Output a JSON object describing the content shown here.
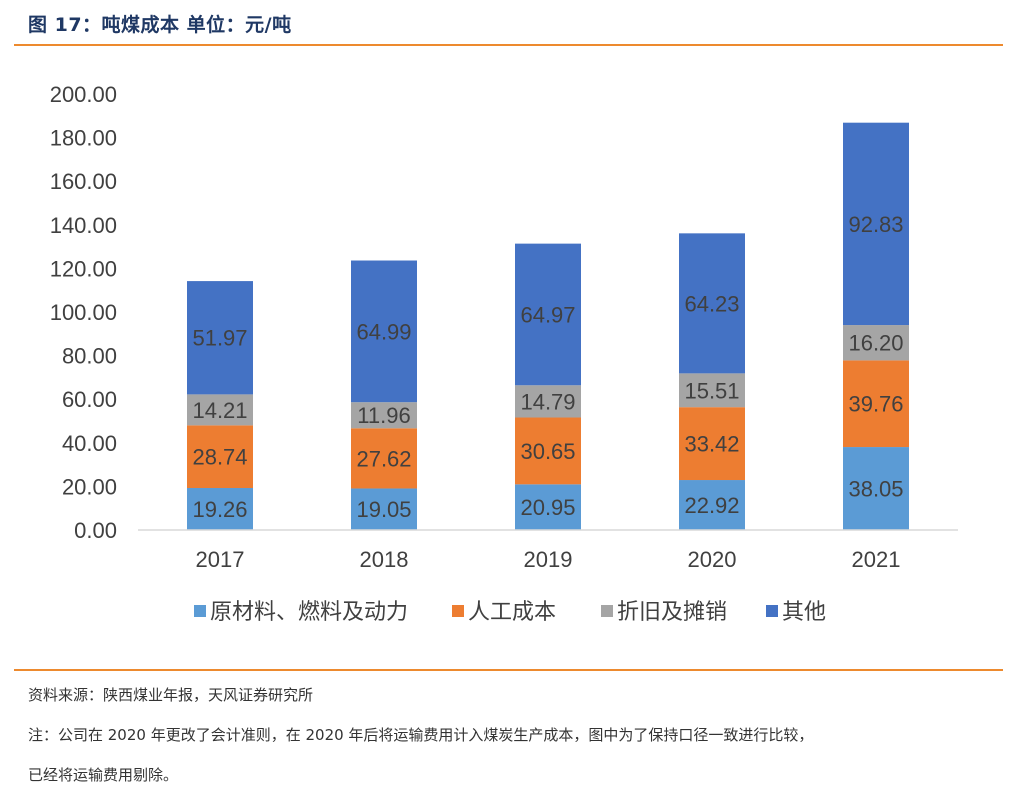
{
  "header": {
    "title": "图 17：吨煤成本 单位：元/吨"
  },
  "chart_data": {
    "type": "stacked-bar",
    "title": "吨煤成本 单位：元/吨",
    "categories": [
      "2017",
      "2018",
      "2019",
      "2020",
      "2021"
    ],
    "ylim": [
      0,
      200
    ],
    "yticks": [
      "0.00",
      "20.00",
      "40.00",
      "60.00",
      "80.00",
      "100.00",
      "120.00",
      "140.00",
      "160.00",
      "180.00",
      "200.00"
    ],
    "series": [
      {
        "name": "原材料、燃料及动力",
        "color": "#5B9BD5",
        "values": [
          19.26,
          19.05,
          20.95,
          22.92,
          38.05
        ],
        "labels": [
          "19.26",
          "19.05",
          "20.95",
          "22.92",
          "38.05"
        ]
      },
      {
        "name": "人工成本",
        "color": "#ED7D31",
        "values": [
          28.74,
          27.62,
          30.65,
          33.42,
          39.76
        ],
        "labels": [
          "28.74",
          "27.62",
          "30.65",
          "33.42",
          "39.76"
        ]
      },
      {
        "name": "折旧及摊销",
        "color": "#A5A5A5",
        "values": [
          14.21,
          11.96,
          14.79,
          15.51,
          16.2
        ],
        "labels": [
          "14.21",
          "11.96",
          "14.79",
          "15.51",
          "16.20"
        ]
      },
      {
        "name": "其他",
        "color": "#4472C4",
        "values": [
          51.97,
          64.99,
          64.97,
          64.23,
          92.83
        ],
        "labels": [
          "51.97",
          "64.99",
          "64.97",
          "64.23",
          "92.83"
        ]
      }
    ],
    "legend_position": "bottom"
  },
  "footer": {
    "source": "资料来源：陕西煤业年报，天风证券研究所",
    "note_line1": "注：公司在 2020 年更改了会计准则，在 2020 年后将运输费用计入煤炭生产成本，图中为了保持口径一致进行比较，",
    "note_line2": "已经将运输费用剔除。"
  }
}
